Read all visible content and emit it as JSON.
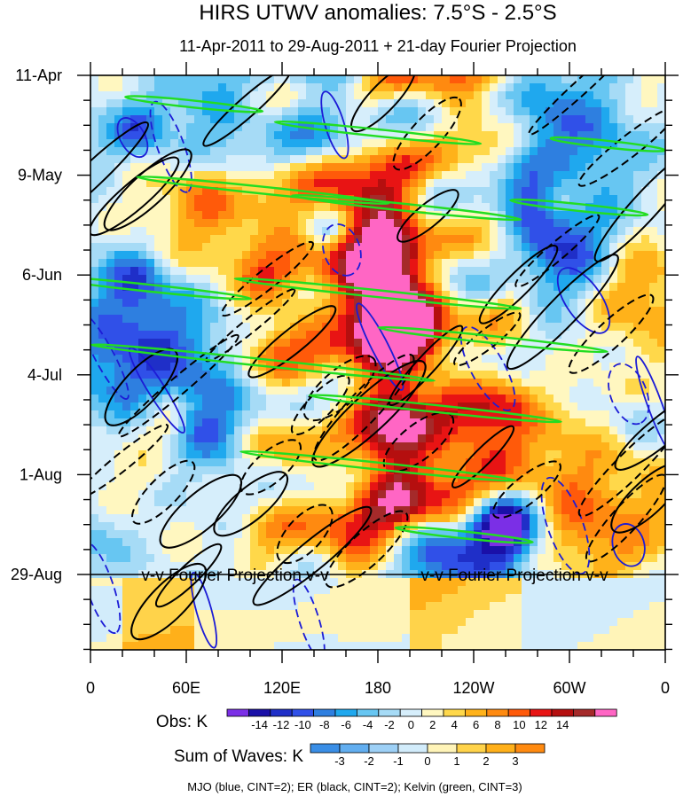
{
  "chart_data": {
    "type": "heatmap",
    "title": "HIRS UTWV anomalies: 7.5°S - 2.5°S",
    "subtitle": "11-Apr-2011 to 29-Aug-2011 + 21-day Fourier Projection",
    "y_ticks": [
      "11-Apr",
      "9-May",
      "6-Jun",
      "4-Jul",
      "1-Aug",
      "29-Aug"
    ],
    "x_ticks": [
      "0",
      "60E",
      "120E",
      "180",
      "120W",
      "60W",
      "0"
    ],
    "x_range_deg": [
      0,
      360
    ],
    "y_range": [
      "11-Apr-2011",
      "19-Sep-2011"
    ],
    "projection_label": "v-v Fourier Projection v-v",
    "obs_colorbar": {
      "label": "Obs: K",
      "tick_labels": [
        "-14",
        "-12",
        "-10",
        "-8",
        "-6",
        "-4",
        "-2",
        "0",
        "2",
        "4",
        "6",
        "8",
        "10",
        "12",
        "14"
      ],
      "colors": [
        "#7b2fe6",
        "#1a10a8",
        "#1f2fc8",
        "#3050e8",
        "#2e7fe0",
        "#1fa8ee",
        "#67c6f2",
        "#a6dbf6",
        "#d6eefb",
        "#fff7c0",
        "#ffd84a",
        "#ffb21a",
        "#ff8a10",
        "#ff5a0a",
        "#e81414",
        "#b50f0f",
        "#a52a2a",
        "#ff66c4"
      ]
    },
    "waves_colorbar": {
      "label": "Sum of Waves: K",
      "tick_labels": [
        "-3",
        "-2",
        "-1",
        "0",
        "1",
        "2",
        "3"
      ],
      "colors": [
        "#3a8ee6",
        "#62aef0",
        "#9dd0f6",
        "#d2ecfb",
        "#fff4b8",
        "#ffd34a",
        "#ffb01a",
        "#ff8a10"
      ]
    },
    "footnote": "MJO (blue, CINT=2); ER (black, CINT=2); Kelvin (green, CINT=3)",
    "contour_colors": {
      "mjo": "#1c1cd6",
      "er": "#000000",
      "kelvin": "#22dd22"
    }
  }
}
